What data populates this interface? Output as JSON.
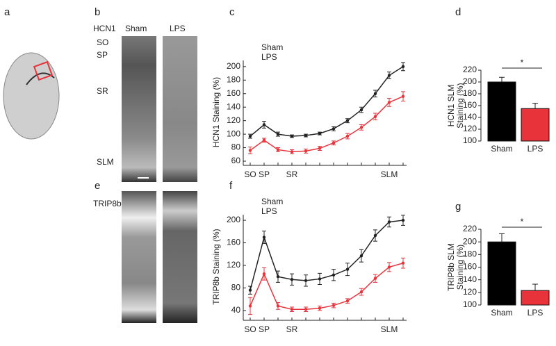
{
  "panel_labels": [
    "a",
    "b",
    "c",
    "d",
    "e",
    "f",
    "g"
  ],
  "micrographs": {
    "rows": [
      "HCN1",
      "TRIP8b"
    ],
    "columns": [
      "Sham",
      "LPS"
    ],
    "layers": [
      "SO",
      "SP",
      "SR",
      "SLM"
    ]
  },
  "chart_data": [
    {
      "type": "line",
      "y_label": "HCN1 Staining (%)",
      "categories": [
        "SO",
        "SP",
        null,
        "SR",
        null,
        null,
        null,
        null,
        null,
        null,
        "SLM",
        null
      ],
      "series": [
        {
          "name": "Sham",
          "color": "#222222",
          "values": [
            97,
            114,
            100,
            97,
            98,
            101,
            108,
            120,
            136,
            160,
            187,
            200
          ],
          "errors": [
            3,
            5,
            3,
            2,
            2,
            2,
            3,
            3,
            4,
            5,
            5,
            6
          ]
        },
        {
          "name": "LPS",
          "color": "#e8333a",
          "values": [
            76,
            91,
            77,
            74,
            75,
            79,
            87,
            97,
            110,
            126,
            147,
            156
          ],
          "errors": [
            5,
            3,
            3,
            3,
            3,
            3,
            3,
            4,
            4,
            5,
            6,
            7
          ]
        }
      ],
      "ylim": [
        60,
        205
      ],
      "yticks": [
        60,
        80,
        100,
        120,
        140,
        160,
        180,
        200
      ]
    },
    {
      "type": "line",
      "y_label": "TRIP8b Staining (%)",
      "categories": [
        "SO",
        "SP",
        null,
        "SR",
        null,
        null,
        null,
        null,
        null,
        null,
        "SLM",
        null
      ],
      "series": [
        {
          "name": "Sham",
          "color": "#222222",
          "values": [
            76,
            170,
            100,
            95,
            93,
            96,
            103,
            113,
            137,
            173,
            197,
            200
          ],
          "errors": [
            7,
            11,
            10,
            10,
            10,
            10,
            10,
            11,
            11,
            10,
            9,
            9
          ]
        },
        {
          "name": "LPS",
          "color": "#e8333a",
          "values": [
            48,
            105,
            48,
            42,
            42,
            44,
            49,
            57,
            73,
            97,
            117,
            124
          ],
          "errors": [
            15,
            11,
            6,
            4,
            4,
            4,
            4,
            4,
            6,
            7,
            8,
            9
          ]
        }
      ],
      "ylim": [
        30,
        205
      ],
      "yticks": [
        40,
        80,
        120,
        160,
        200
      ]
    },
    {
      "type": "bar",
      "y_label": [
        "HCN1 SLM",
        "Staining (%)"
      ],
      "annotation": "*",
      "categories": [
        "Sham",
        "LPS"
      ],
      "values": [
        200,
        155
      ],
      "errors": [
        8,
        9
      ],
      "colors": [
        "#000000",
        "#e8333a"
      ],
      "ylim": [
        100,
        220
      ],
      "yticks": [
        100,
        120,
        140,
        160,
        180,
        200,
        220
      ]
    },
    {
      "type": "bar",
      "y_label": [
        "TRIP8b SLM",
        "Staining (%)"
      ],
      "annotation": "*",
      "categories": [
        "Sham",
        "LPS"
      ],
      "values": [
        200,
        123
      ],
      "errors": [
        13,
        10
      ],
      "colors": [
        "#000000",
        "#e8333a"
      ],
      "ylim": [
        100,
        220
      ],
      "yticks": [
        100,
        120,
        140,
        160,
        180,
        200,
        220
      ]
    }
  ]
}
